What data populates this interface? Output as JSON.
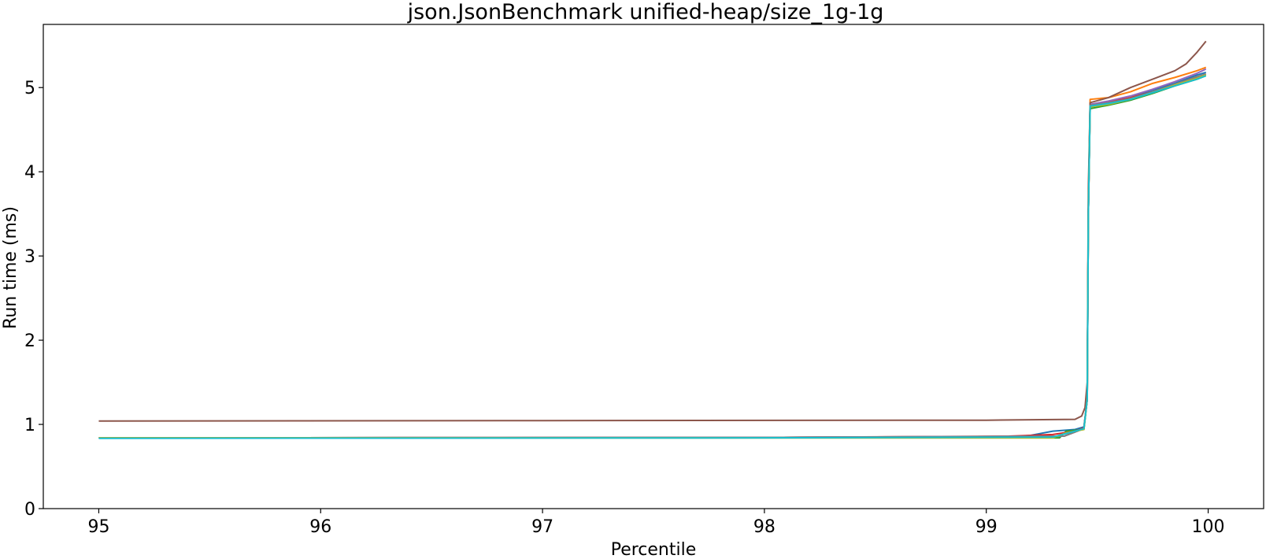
{
  "chart_data": {
    "type": "line",
    "title": "json.JsonBenchmark unified-heap/size_1g-1g",
    "xlabel": "Percentile",
    "ylabel": "Run time (ms)",
    "xlim": [
      94.75,
      100.25
    ],
    "ylim": [
      0,
      5.75
    ],
    "xticks": [
      95,
      96,
      97,
      98,
      99,
      100
    ],
    "yticks": [
      0,
      1,
      2,
      3,
      4,
      5
    ],
    "grid": false,
    "legend": "none",
    "series": [
      {
        "color": "#1f77b4",
        "points": [
          [
            95,
            0.84
          ],
          [
            98,
            0.845
          ],
          [
            99.1,
            0.85
          ],
          [
            99.2,
            0.87
          ],
          [
            99.3,
            0.92
          ],
          [
            99.4,
            0.94
          ],
          [
            99.44,
            0.97
          ],
          [
            99.455,
            1.3
          ],
          [
            99.46,
            3.5
          ],
          [
            99.468,
            4.78
          ],
          [
            99.55,
            4.82
          ],
          [
            99.65,
            4.88
          ],
          [
            99.75,
            4.97
          ],
          [
            99.85,
            5.05
          ],
          [
            99.95,
            5.15
          ],
          [
            99.99,
            5.18
          ]
        ]
      },
      {
        "color": "#ff7f0e",
        "points": [
          [
            95,
            0.84
          ],
          [
            98,
            0.845
          ],
          [
            99.35,
            0.86
          ],
          [
            99.44,
            0.95
          ],
          [
            99.455,
            1.3
          ],
          [
            99.46,
            3.6
          ],
          [
            99.468,
            4.86
          ],
          [
            99.55,
            4.88
          ],
          [
            99.65,
            4.95
          ],
          [
            99.75,
            5.05
          ],
          [
            99.85,
            5.12
          ],
          [
            99.95,
            5.2
          ],
          [
            99.99,
            5.24
          ]
        ]
      },
      {
        "color": "#2ca02c",
        "points": [
          [
            95,
            0.84
          ],
          [
            98,
            0.84
          ],
          [
            99.33,
            0.84
          ],
          [
            99.36,
            0.92
          ],
          [
            99.44,
            0.94
          ],
          [
            99.455,
            1.3
          ],
          [
            99.46,
            3.5
          ],
          [
            99.468,
            4.75
          ],
          [
            99.55,
            4.79
          ],
          [
            99.65,
            4.85
          ],
          [
            99.75,
            4.93
          ],
          [
            99.85,
            5.02
          ],
          [
            99.95,
            5.1
          ],
          [
            99.99,
            5.14
          ]
        ]
      },
      {
        "color": "#d62728",
        "points": [
          [
            95,
            0.84
          ],
          [
            98,
            0.845
          ],
          [
            99.1,
            0.86
          ],
          [
            99.2,
            0.87
          ],
          [
            99.3,
            0.88
          ],
          [
            99.4,
            0.92
          ],
          [
            99.44,
            0.96
          ],
          [
            99.455,
            1.3
          ],
          [
            99.46,
            3.5
          ],
          [
            99.468,
            4.8
          ],
          [
            99.55,
            4.83
          ],
          [
            99.65,
            4.88
          ],
          [
            99.75,
            4.95
          ],
          [
            99.85,
            5.03
          ],
          [
            99.95,
            5.12
          ],
          [
            99.99,
            5.16
          ]
        ]
      },
      {
        "color": "#9467bd",
        "points": [
          [
            95,
            0.84
          ],
          [
            98,
            0.845
          ],
          [
            99.35,
            0.86
          ],
          [
            99.44,
            0.95
          ],
          [
            99.455,
            1.3
          ],
          [
            99.46,
            3.5
          ],
          [
            99.468,
            4.8
          ],
          [
            99.55,
            4.84
          ],
          [
            99.65,
            4.9
          ],
          [
            99.75,
            4.98
          ],
          [
            99.85,
            5.07
          ],
          [
            99.95,
            5.17
          ],
          [
            99.99,
            5.22
          ]
        ]
      },
      {
        "color": "#8c564b",
        "points": [
          [
            95,
            1.04
          ],
          [
            97,
            1.045
          ],
          [
            99,
            1.05
          ],
          [
            99.4,
            1.06
          ],
          [
            99.43,
            1.1
          ],
          [
            99.445,
            1.2
          ],
          [
            99.455,
            1.5
          ],
          [
            99.46,
            3.8
          ],
          [
            99.468,
            4.82
          ],
          [
            99.55,
            4.88
          ],
          [
            99.65,
            5.0
          ],
          [
            99.75,
            5.1
          ],
          [
            99.85,
            5.2
          ],
          [
            99.9,
            5.28
          ],
          [
            99.95,
            5.42
          ],
          [
            99.99,
            5.55
          ]
        ]
      },
      {
        "color": "#7f7f7f",
        "points": [
          [
            95,
            0.84
          ],
          [
            98,
            0.845
          ],
          [
            99.35,
            0.86
          ],
          [
            99.44,
            0.95
          ],
          [
            99.455,
            1.3
          ],
          [
            99.46,
            3.5
          ],
          [
            99.468,
            4.79
          ],
          [
            99.55,
            4.82
          ],
          [
            99.65,
            4.87
          ],
          [
            99.75,
            4.95
          ],
          [
            99.85,
            5.04
          ],
          [
            99.95,
            5.13
          ],
          [
            99.99,
            5.16
          ]
        ]
      },
      {
        "color": "#bcbd22",
        "points": [
          [
            95,
            0.84
          ],
          [
            98,
            0.84
          ],
          [
            99.3,
            0.84
          ],
          [
            99.36,
            0.9
          ],
          [
            99.44,
            0.94
          ],
          [
            99.455,
            1.3
          ],
          [
            99.46,
            3.5
          ],
          [
            99.468,
            4.77
          ],
          [
            99.55,
            4.8
          ],
          [
            99.65,
            4.86
          ],
          [
            99.75,
            4.94
          ],
          [
            99.85,
            5.03
          ],
          [
            99.95,
            5.11
          ],
          [
            99.99,
            5.15
          ]
        ]
      },
      {
        "color": "#17becf",
        "points": [
          [
            95,
            0.835
          ],
          [
            98,
            0.84
          ],
          [
            99.3,
            0.85
          ],
          [
            99.4,
            0.92
          ],
          [
            99.44,
            0.95
          ],
          [
            99.455,
            1.3
          ],
          [
            99.46,
            3.5
          ],
          [
            99.468,
            4.78
          ],
          [
            99.55,
            4.81
          ],
          [
            99.65,
            4.86
          ],
          [
            99.75,
            4.94
          ],
          [
            99.85,
            5.02
          ],
          [
            99.95,
            5.1
          ],
          [
            99.99,
            5.14
          ]
        ]
      }
    ]
  }
}
